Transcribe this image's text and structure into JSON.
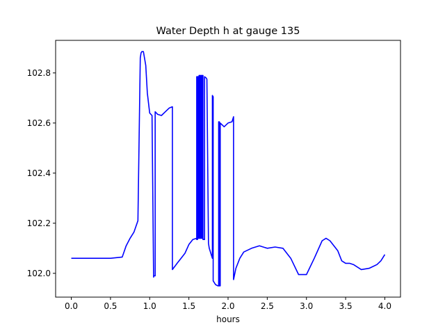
{
  "chart_data": {
    "type": "line",
    "title": "Water Depth h at gauge 135",
    "xlabel": "hours",
    "ylabel": "",
    "xlim": [
      -0.2,
      4.2
    ],
    "ylim": [
      101.905,
      102.93
    ],
    "xticks": [
      0.0,
      0.5,
      1.0,
      1.5,
      2.0,
      2.5,
      3.0,
      3.5,
      4.0
    ],
    "xtick_labels": [
      "0.0",
      "0.5",
      "1.0",
      "1.5",
      "2.0",
      "2.5",
      "3.0",
      "3.5",
      "4.0"
    ],
    "yticks": [
      102.0,
      102.2,
      102.4,
      102.6,
      102.8
    ],
    "ytick_labels": [
      "102.0",
      "102.2",
      "102.4",
      "102.6",
      "102.8"
    ],
    "grid": false,
    "legend": "none",
    "series": [
      {
        "color": "#0000ff",
        "x": [
          0.0,
          0.5,
          0.65,
          0.7,
          0.75,
          0.8,
          0.85,
          0.88,
          0.89,
          0.9,
          0.92,
          0.95,
          0.97,
          1.0,
          1.03,
          1.05,
          1.05,
          1.07,
          1.07,
          1.1,
          1.15,
          1.2,
          1.25,
          1.29,
          1.29,
          1.35,
          1.4,
          1.45,
          1.5,
          1.55,
          1.6,
          1.6,
          1.6,
          1.61,
          1.61,
          1.62,
          1.62,
          1.63,
          1.63,
          1.64,
          1.64,
          1.65,
          1.65,
          1.66,
          1.66,
          1.67,
          1.67,
          1.68,
          1.68,
          1.7,
          1.7,
          1.72,
          1.73,
          1.75,
          1.76,
          1.8,
          1.8,
          1.81,
          1.81,
          1.84,
          1.87,
          1.88,
          1.88,
          1.89,
          1.89,
          1.9,
          1.9,
          1.95,
          2.0,
          2.05,
          2.07,
          2.07,
          2.1,
          2.15,
          2.2,
          2.3,
          2.4,
          2.5,
          2.6,
          2.7,
          2.8,
          2.9,
          3.0,
          3.1,
          3.2,
          3.25,
          3.3,
          3.4,
          3.45,
          3.5,
          3.55,
          3.6,
          3.7,
          3.8,
          3.9,
          3.95,
          4.0
        ],
        "y": [
          102.06,
          102.06,
          102.065,
          102.11,
          102.14,
          102.165,
          102.21,
          102.86,
          102.88,
          102.885,
          102.885,
          102.83,
          102.72,
          102.64,
          102.63,
          101.985,
          101.99,
          101.99,
          102.645,
          102.635,
          102.63,
          102.645,
          102.66,
          102.665,
          102.015,
          102.04,
          102.06,
          102.08,
          102.115,
          102.135,
          102.14,
          102.785,
          102.135,
          102.135,
          102.785,
          102.785,
          102.14,
          102.14,
          102.79,
          102.79,
          102.14,
          102.14,
          102.79,
          102.79,
          102.14,
          102.14,
          102.79,
          102.79,
          102.135,
          102.135,
          102.785,
          102.78,
          102.775,
          102.12,
          102.1,
          102.06,
          102.71,
          102.705,
          101.97,
          101.955,
          101.95,
          101.95,
          102.605,
          102.605,
          101.95,
          101.95,
          102.6,
          102.585,
          102.6,
          102.605,
          102.625,
          101.975,
          102.02,
          102.06,
          102.085,
          102.1,
          102.11,
          102.1,
          102.105,
          102.1,
          102.06,
          101.995,
          101.995,
          102.06,
          102.13,
          102.14,
          102.13,
          102.09,
          102.05,
          102.04,
          102.04,
          102.035,
          102.015,
          102.02,
          102.035,
          102.05,
          102.075
        ]
      }
    ]
  }
}
